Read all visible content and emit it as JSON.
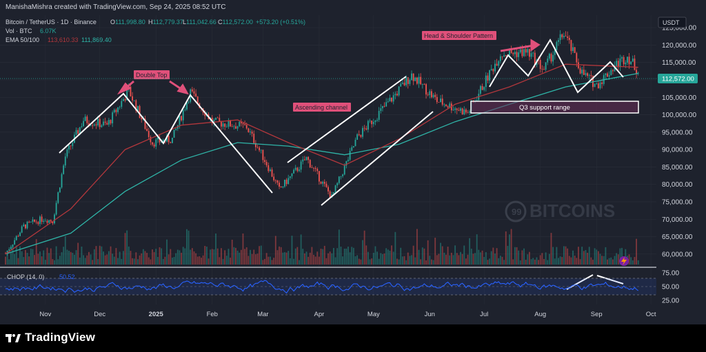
{
  "header": {
    "credit": "ManishaMishra created with TradingView.com, Sep 24, 2025 08:52 UTC"
  },
  "legend": {
    "symbol": "Bitcoin / TetherUS · 1D · Binance",
    "ohlc": [
      {
        "k": "O",
        "v": "111,998.80"
      },
      {
        "k": "H",
        "v": "112,779.37"
      },
      {
        "k": "L",
        "v": "111,042.66"
      },
      {
        "k": "C",
        "v": "112,572.00"
      }
    ],
    "change": "+573.20 (+0.51%)",
    "vol_label": "Vol · BTC",
    "vol_value": "6.07K",
    "ema_label": "EMA 50/100",
    "ema50": "113,610.33",
    "ema100": "111,869.40"
  },
  "currency_badge": "USDT",
  "last_price_badge": "112,572.00",
  "chop_label": "CHOP (14, 0)",
  "chop_value": "50.52",
  "watermark": "BITCOINS",
  "watermark_num": "99",
  "footer": {
    "brand": "TradingView"
  },
  "colors": {
    "background": "#1e222d",
    "up": "#26a69a",
    "down": "#ef5350",
    "ema50": "#b2373c",
    "ema100": "#2fb5a8",
    "chop": "#2962ff",
    "annotation_bg": "#e0507a"
  },
  "chart_data": {
    "type": "candlestick",
    "title": "",
    "x_ticks": [
      "Nov",
      "Dec",
      "2025",
      "Feb",
      "Mar",
      "Apr",
      "May",
      "Jun",
      "Jul",
      "Aug",
      "Sep",
      "Oct"
    ],
    "y_ticks": [
      "125,000.00",
      "120,000.00",
      "115,000.00",
      "110,000.00",
      "105,000.00",
      "100,000.00",
      "95,000.00",
      "90,000.00",
      "85,000.00",
      "80,000.00",
      "75,000.00",
      "70,000.00",
      "65,000.00",
      "60,000.00"
    ],
    "ylim": [
      57000,
      127000
    ],
    "date_range": [
      "2024-10-10",
      "2025-10-04"
    ],
    "chop_ticks": [
      "75.00",
      "50.00",
      "25.00"
    ],
    "chop_ylim": [
      20,
      80
    ],
    "close_series": [
      {
        "d": "2024-10-10",
        "v": 60200
      },
      {
        "d": "2024-10-20",
        "v": 68000
      },
      {
        "d": "2024-10-31",
        "v": 70200
      },
      {
        "d": "2024-11-05",
        "v": 69500
      },
      {
        "d": "2024-11-12",
        "v": 88000
      },
      {
        "d": "2024-11-22",
        "v": 98500
      },
      {
        "d": "2024-12-05",
        "v": 97000
      },
      {
        "d": "2024-12-17",
        "v": 107000
      },
      {
        "d": "2024-12-30",
        "v": 92000
      },
      {
        "d": "2025-01-10",
        "v": 93000
      },
      {
        "d": "2025-01-20",
        "v": 106500
      },
      {
        "d": "2025-02-01",
        "v": 98000
      },
      {
        "d": "2025-02-20",
        "v": 96500
      },
      {
        "d": "2025-03-03",
        "v": 86000
      },
      {
        "d": "2025-03-10",
        "v": 78500
      },
      {
        "d": "2025-03-25",
        "v": 87500
      },
      {
        "d": "2025-04-08",
        "v": 76300
      },
      {
        "d": "2025-04-22",
        "v": 93500
      },
      {
        "d": "2025-05-10",
        "v": 104000
      },
      {
        "d": "2025-05-22",
        "v": 111500
      },
      {
        "d": "2025-06-05",
        "v": 104000
      },
      {
        "d": "2025-06-22",
        "v": 100500
      },
      {
        "d": "2025-07-10",
        "v": 117500
      },
      {
        "d": "2025-07-25",
        "v": 118000
      },
      {
        "d": "2025-08-03",
        "v": 113000
      },
      {
        "d": "2025-08-14",
        "v": 123500
      },
      {
        "d": "2025-08-24",
        "v": 112000
      },
      {
        "d": "2025-09-01",
        "v": 108500
      },
      {
        "d": "2025-09-12",
        "v": 114500
      },
      {
        "d": "2025-09-18",
        "v": 116800
      },
      {
        "d": "2025-09-24",
        "v": 112572
      }
    ],
    "ema50_series": [
      {
        "d": "2024-10-10",
        "v": 60000
      },
      {
        "d": "2024-11-15",
        "v": 73000
      },
      {
        "d": "2024-12-15",
        "v": 90000
      },
      {
        "d": "2025-01-15",
        "v": 97000
      },
      {
        "d": "2025-02-15",
        "v": 98500
      },
      {
        "d": "2025-03-15",
        "v": 92000
      },
      {
        "d": "2025-04-15",
        "v": 85500
      },
      {
        "d": "2025-05-15",
        "v": 93000
      },
      {
        "d": "2025-06-15",
        "v": 103000
      },
      {
        "d": "2025-07-15",
        "v": 108000
      },
      {
        "d": "2025-08-15",
        "v": 114500
      },
      {
        "d": "2025-09-24",
        "v": 113610
      }
    ],
    "ema100_series": [
      {
        "d": "2024-10-10",
        "v": 60000
      },
      {
        "d": "2024-11-15",
        "v": 66000
      },
      {
        "d": "2024-12-15",
        "v": 78000
      },
      {
        "d": "2025-01-15",
        "v": 87000
      },
      {
        "d": "2025-02-15",
        "v": 92000
      },
      {
        "d": "2025-03-15",
        "v": 91000
      },
      {
        "d": "2025-04-15",
        "v": 88500
      },
      {
        "d": "2025-05-15",
        "v": 91500
      },
      {
        "d": "2025-06-15",
        "v": 98000
      },
      {
        "d": "2025-07-15",
        "v": 103000
      },
      {
        "d": "2025-08-15",
        "v": 108000
      },
      {
        "d": "2025-09-24",
        "v": 111869
      }
    ],
    "annotations": [
      {
        "label": "Double Top",
        "d": "2024-12-20",
        "v": 118000
      },
      {
        "label": "Ascending channel",
        "d": "2025-04-10",
        "v": 102000
      },
      {
        "label": "Head & Shoulder Pattern",
        "d": "2025-07-20",
        "v": 125000
      },
      {
        "label": "Q3 support range",
        "d": "2025-07-30",
        "v": 103500
      }
    ],
    "support_range": {
      "d1": "2025-06-28",
      "d2": "2025-09-29",
      "low": 102500,
      "high": 105700
    }
  }
}
